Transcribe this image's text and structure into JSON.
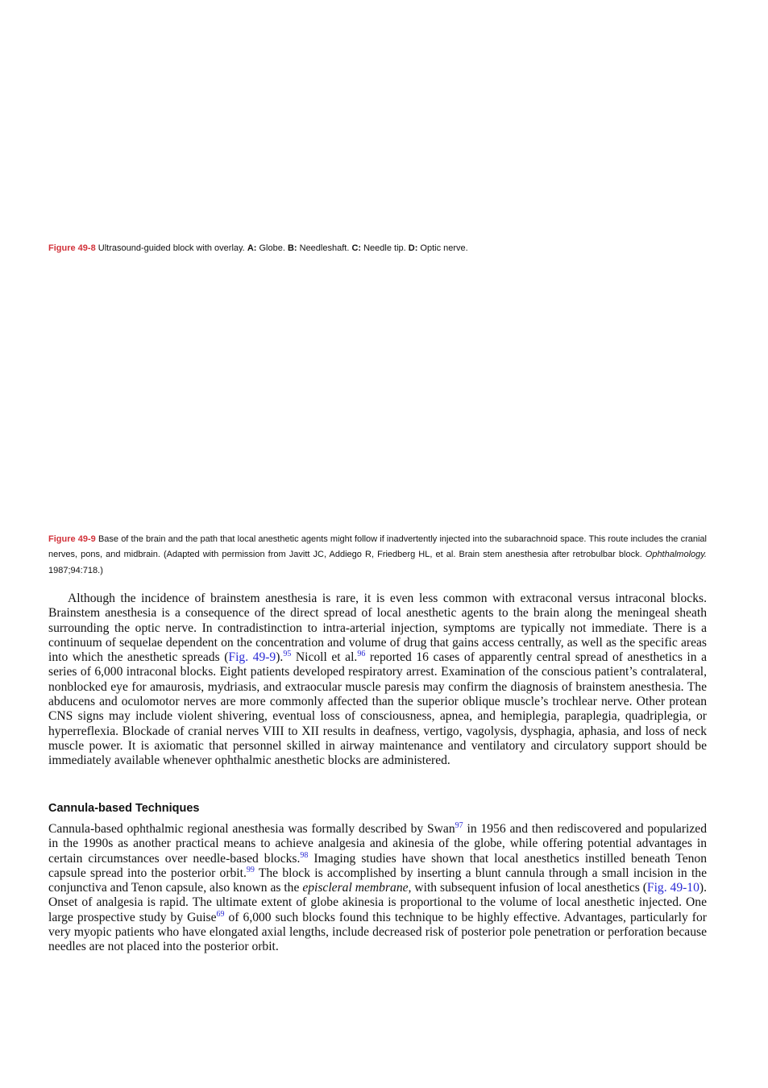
{
  "figure_captions": [
    {
      "label": "Figure 49-8",
      "runs": [
        " Ultrasound-guided block with overlay. ",
        {
          "text": "A:",
          "style": "bold"
        },
        " Globe. ",
        {
          "text": "B:",
          "style": "bold"
        },
        " Needleshaft. ",
        {
          "text": "C:",
          "style": "bold"
        },
        " Needle tip. ",
        {
          "text": "D:",
          "style": "bold"
        },
        " Optic nerve."
      ]
    },
    {
      "label": "Figure 49-9",
      "runs": [
        " Base of the brain and the path that local anesthetic agents might follow if inadvertently injected into the subarachnoid space. This route includes the cranial nerves, pons, and midbrain. (Adapted with permission from Javitt JC, Addiego R, Friedberg HL, et al. Brain stem anesthesia after retrobulbar block. ",
        {
          "text": "Ophthalmology.",
          "style": "italic"
        },
        " 1987;94:718.)"
      ]
    }
  ],
  "paragraphs": [
    {
      "runs": [
        "Although the incidence of brainstem anesthesia is rare, it is even less common with extraconal versus intraconal blocks. Brainstem anesthesia is a consequence of the direct spread of local anesthetic agents to the brain along the meningeal sheath surrounding the optic nerve. In contradistinction to intra-arterial injection, symptoms are typically not immediate. There is a continuum of sequelae dependent on the concentration and volume of drug that gains access centrally, as well as the specific areas into which the anesthetic spreads (",
        {
          "text": "Fig. 49-9",
          "style": "link"
        },
        ").",
        {
          "text": "95",
          "style": "sup"
        },
        " Nicoll et al.",
        {
          "text": "96",
          "style": "sup"
        },
        " reported 16 cases of apparently central spread of anesthetics in a series of 6,000 intraconal blocks. Eight patients developed respiratory arrest. Examination of the conscious patient’s contralateral, nonblocked eye for amaurosis, mydriasis, and extraocular muscle paresis may confirm the diagnosis of brainstem anesthesia. The abducens and oculomotor nerves are more commonly affected than the superior oblique muscle’s trochlear nerve. Other protean CNS signs may include violent shivering, eventual loss of consciousness, apnea, and hemiplegia, paraplegia, quadriplegia, or hyperreflexia. Blockade of cranial nerves VIII to XII results in deafness, vertigo, vagolysis, dysphagia, aphasia, and loss of neck muscle power. It is axiomatic that personnel skilled in airway maintenance and ventilatory and circulatory support should be immediately available whenever ophthalmic anesthetic blocks are administered."
      ]
    },
    {
      "heading": "Cannula-based Techniques",
      "runs": [
        "Cannula-based ophthalmic regional anesthesia was formally described by Swan",
        {
          "text": "97",
          "style": "sup"
        },
        " in 1956 and then rediscovered and popularized in the 1990s as another practical means to achieve analgesia and akinesia of the globe, while offering potential advantages in certain circumstances over needle-based blocks.",
        {
          "text": "98",
          "style": "sup"
        },
        " Imaging studies have shown that local anesthetics instilled beneath Tenon capsule spread into the posterior orbit.",
        {
          "text": "99",
          "style": "sup"
        },
        " The block is accomplished by inserting a blunt cannula through a small incision in the conjunctiva and Tenon capsule, also known as the ",
        {
          "text": "episcleral membrane,",
          "style": "italic"
        },
        " with subsequent infusion of local anesthetics (",
        {
          "text": "Fig. 49-10",
          "style": "link"
        },
        "). Onset of analgesia is rapid. The ultimate extent of globe akinesia is proportional to the volume of local anesthetic injected. One large prospective study by Guise",
        {
          "text": "69",
          "style": "sup"
        },
        " of 6,000 such blocks found this technique to be highly effective. Advantages, particularly for very myopic patients who have elongated axial lengths, include decreased risk of posterior pole penetration or perforation because needles are not placed into the posterior orbit."
      ]
    }
  ]
}
